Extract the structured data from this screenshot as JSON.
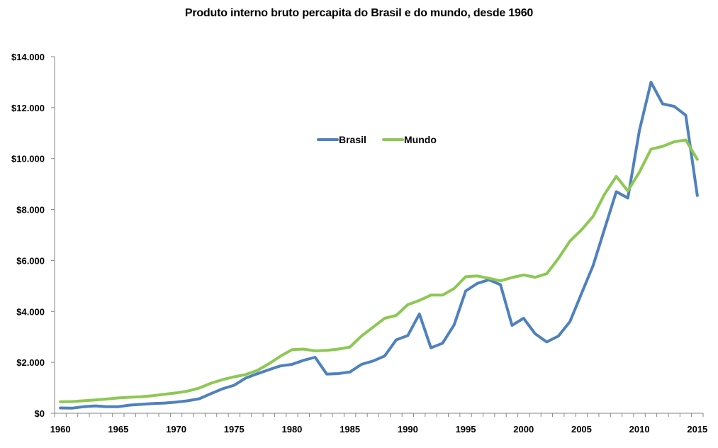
{
  "chart_data": {
    "type": "line",
    "title": "Produto interno bruto percapita do Brasil e do mundo, desde 1960",
    "xlabel": "",
    "ylabel": "",
    "ylim": [
      0,
      14000
    ],
    "yticks": [
      0,
      2000,
      4000,
      6000,
      8000,
      10000,
      12000,
      14000
    ],
    "ytick_labels": [
      "$0",
      "$2.000",
      "$4.000",
      "$6.000",
      "$8.000",
      "$10.000",
      "$12.000",
      "$14.000"
    ],
    "xtick_labels": [
      "1960",
      "1965",
      "1970",
      "1975",
      "1980",
      "1985",
      "1990",
      "1995",
      "2000",
      "2005",
      "2010",
      "2015"
    ],
    "grid": false,
    "legend_position": "top-center",
    "x": [
      1960,
      1961,
      1962,
      1963,
      1964,
      1965,
      1966,
      1967,
      1968,
      1969,
      1970,
      1971,
      1972,
      1973,
      1974,
      1975,
      1976,
      1977,
      1978,
      1979,
      1980,
      1981,
      1982,
      1983,
      1984,
      1985,
      1986,
      1987,
      1988,
      1989,
      1990,
      1991,
      1992,
      1993,
      1994,
      1995,
      1996,
      1997,
      1998,
      1999,
      2000,
      2001,
      2002,
      2003,
      2004,
      2005,
      2006,
      2007,
      2008,
      2009,
      2010,
      2011,
      2012,
      2013,
      2014,
      2015
    ],
    "series": [
      {
        "name": "Brasil",
        "color": "#4F81BD",
        "values": [
          210,
          200,
          255,
          290,
          260,
          260,
          320,
          350,
          380,
          400,
          440,
          490,
          570,
          770,
          960,
          1100,
          1380,
          1550,
          1710,
          1860,
          1920,
          2080,
          2200,
          1540,
          1560,
          1620,
          1920,
          2050,
          2250,
          2880,
          3050,
          3900,
          2570,
          2750,
          3470,
          4800,
          5100,
          5240,
          5050,
          3450,
          3730,
          3120,
          2800,
          3030,
          3600,
          4700,
          5800,
          7250,
          8700,
          8450,
          11100,
          13000,
          12150,
          12050,
          11700,
          8550
        ]
      },
      {
        "name": "Mundo",
        "color": "#8DC853",
        "values": [
          450,
          460,
          490,
          520,
          560,
          600,
          630,
          650,
          690,
          750,
          800,
          870,
          990,
          1180,
          1320,
          1430,
          1520,
          1680,
          1940,
          2240,
          2500,
          2520,
          2450,
          2470,
          2520,
          2600,
          3030,
          3380,
          3730,
          3840,
          4260,
          4430,
          4640,
          4640,
          4900,
          5360,
          5390,
          5300,
          5200,
          5330,
          5430,
          5340,
          5480,
          6080,
          6760,
          7200,
          7730,
          8610,
          9300,
          8730,
          9470,
          10370,
          10480,
          10660,
          10730,
          9970
        ]
      }
    ]
  }
}
